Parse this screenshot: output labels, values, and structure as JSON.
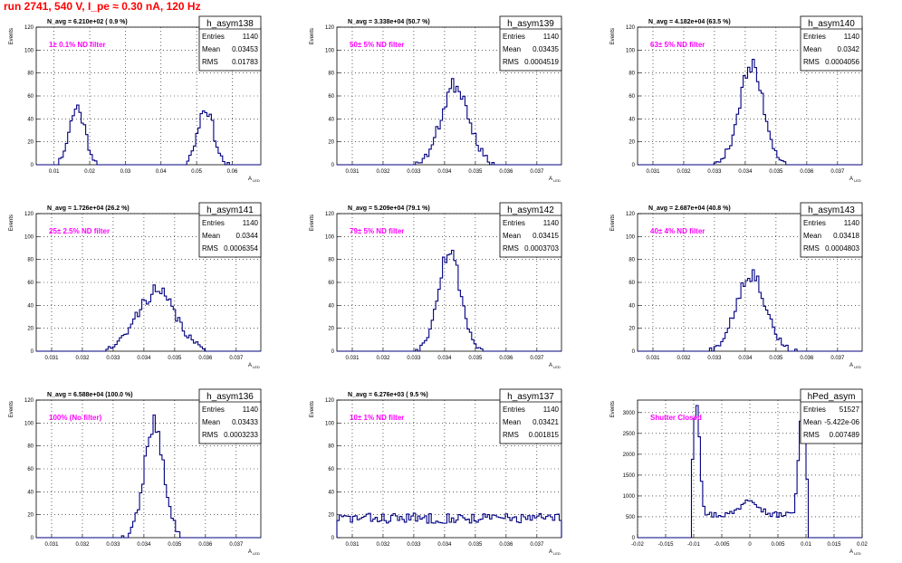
{
  "page_title": "run 2741,   540 V, I_pe ≈ 0.30 nA, 120 Hz",
  "stats_labels": {
    "entries": "Entries",
    "mean": "Mean",
    "rms": "RMS"
  },
  "y_axis_label": "Events",
  "x_axis_label": "A",
  "x_axis_subscript": "LED",
  "colors": {
    "hist": "#000080",
    "title": "#ff0000",
    "annotation": "#ff00ff"
  },
  "chart_data": [
    {
      "type": "histogram",
      "name": "h_asym138",
      "n_avg": "N_avg = 6.210e+02 ( 0.9 %)",
      "annotation": "1± 0.1% ND filter",
      "entries": "1140",
      "mean": "0.03453",
      "rms": "0.01783",
      "xlim": [
        0.005,
        0.068
      ],
      "ylim": [
        0,
        120
      ],
      "xticks": [
        0.01,
        0.02,
        0.03,
        0.04,
        0.05,
        0.06
      ],
      "xtick_labels": [
        "0.01",
        "0.02",
        "0.03",
        "0.04",
        "0.05",
        "0.06"
      ],
      "yticks": [
        0,
        20,
        40,
        60,
        80,
        100,
        120
      ],
      "ytick_labels": [
        "0",
        "20",
        "40",
        "60",
        "80",
        "100",
        "120"
      ],
      "peaks": [
        {
          "mean": 0.0165,
          "sigma": 0.0022,
          "height": 50
        },
        {
          "mean": 0.0525,
          "sigma": 0.0022,
          "height": 50
        }
      ],
      "seed": 11
    },
    {
      "type": "histogram",
      "name": "h_asym139",
      "n_avg": "N_avg = 3.338e+04 (50.7 %)",
      "annotation": "50± 5% ND filter",
      "entries": "1140",
      "mean": "0.03435",
      "rms": "0.0004519",
      "xlim": [
        0.0305,
        0.0378
      ],
      "ylim": [
        0,
        120
      ],
      "xticks": [
        0.031,
        0.032,
        0.033,
        0.034,
        0.035,
        0.036,
        0.037
      ],
      "xtick_labels": [
        "0.031",
        "0.032",
        "0.033",
        "0.034",
        "0.035",
        "0.036",
        "0.037"
      ],
      "yticks": [
        0,
        20,
        40,
        60,
        80,
        100,
        120
      ],
      "ytick_labels": [
        "0",
        "20",
        "40",
        "60",
        "80",
        "100",
        "120"
      ],
      "peaks": [
        {
          "mean": 0.03435,
          "sigma": 0.00045,
          "height": 70
        }
      ],
      "seed": 23
    },
    {
      "type": "histogram",
      "name": "h_asym140",
      "n_avg": "N_avg = 4.182e+04 (63.5 %)",
      "annotation": "63± 5% ND filter",
      "entries": "1140",
      "mean": "0.0342",
      "rms": "0.0004056",
      "xlim": [
        0.0305,
        0.0378
      ],
      "ylim": [
        0,
        120
      ],
      "xticks": [
        0.031,
        0.032,
        0.033,
        0.034,
        0.035,
        0.036,
        0.037
      ],
      "xtick_labels": [
        "0.031",
        "0.032",
        "0.033",
        "0.034",
        "0.035",
        "0.036",
        "0.037"
      ],
      "yticks": [
        0,
        20,
        40,
        60,
        80,
        100,
        120
      ],
      "ytick_labels": [
        "0",
        "20",
        "40",
        "60",
        "80",
        "100",
        "120"
      ],
      "peaks": [
        {
          "mean": 0.0342,
          "sigma": 0.0004,
          "height": 85
        }
      ],
      "seed": 37
    },
    {
      "type": "histogram",
      "name": "h_asym141",
      "n_avg": "N_avg = 1.726e+04 (26.2 %)",
      "annotation": "25± 2.5% ND filter",
      "entries": "1140",
      "mean": "0.0344",
      "rms": "0.0006354",
      "xlim": [
        0.0305,
        0.0378
      ],
      "ylim": [
        0,
        120
      ],
      "xticks": [
        0.031,
        0.032,
        0.033,
        0.034,
        0.035,
        0.036,
        0.037
      ],
      "xtick_labels": [
        "0.031",
        "0.032",
        "0.033",
        "0.034",
        "0.035",
        "0.036",
        "0.037"
      ],
      "yticks": [
        0,
        20,
        40,
        60,
        80,
        100,
        120
      ],
      "ytick_labels": [
        "0",
        "20",
        "40",
        "60",
        "80",
        "100",
        "120"
      ],
      "peaks": [
        {
          "mean": 0.0344,
          "sigma": 0.00063,
          "height": 52
        }
      ],
      "seed": 41
    },
    {
      "type": "histogram",
      "name": "h_asym142",
      "n_avg": "N_avg = 5.209e+04 (79.1 %)",
      "annotation": "79± 5% ND filter",
      "entries": "1140",
      "mean": "0.03415",
      "rms": "0.0003703",
      "xlim": [
        0.0305,
        0.0378
      ],
      "ylim": [
        0,
        120
      ],
      "xticks": [
        0.031,
        0.032,
        0.033,
        0.034,
        0.035,
        0.036,
        0.037
      ],
      "xtick_labels": [
        "0.031",
        "0.032",
        "0.033",
        "0.034",
        "0.035",
        "0.036",
        "0.037"
      ],
      "yticks": [
        0,
        20,
        40,
        60,
        80,
        100,
        120
      ],
      "ytick_labels": [
        "0",
        "20",
        "40",
        "60",
        "80",
        "100",
        "120"
      ],
      "peaks": [
        {
          "mean": 0.03415,
          "sigma": 0.00037,
          "height": 88
        }
      ],
      "seed": 53
    },
    {
      "type": "histogram",
      "name": "h_asym143",
      "n_avg": "N_avg = 2.687e+04 (40.8 %)",
      "annotation": "40± 4% ND filter",
      "entries": "1140",
      "mean": "0.03418",
      "rms": "0.0004803",
      "xlim": [
        0.0305,
        0.0378
      ],
      "ylim": [
        0,
        120
      ],
      "xticks": [
        0.031,
        0.032,
        0.033,
        0.034,
        0.035,
        0.036,
        0.037
      ],
      "xtick_labels": [
        "0.031",
        "0.032",
        "0.033",
        "0.034",
        "0.035",
        "0.036",
        "0.037"
      ],
      "yticks": [
        0,
        20,
        40,
        60,
        80,
        100,
        120
      ],
      "ytick_labels": [
        "0",
        "20",
        "40",
        "60",
        "80",
        "100",
        "120"
      ],
      "peaks": [
        {
          "mean": 0.03418,
          "sigma": 0.00048,
          "height": 68
        }
      ],
      "seed": 67
    },
    {
      "type": "histogram",
      "name": "h_asym136",
      "n_avg": "N_avg = 6.588e+04 (100.0 %)",
      "annotation": "100% (No filter)",
      "entries": "1140",
      "mean": "0.03433",
      "rms": "0.0003233",
      "xlim": [
        0.0305,
        0.0378
      ],
      "ylim": [
        0,
        120
      ],
      "xticks": [
        0.031,
        0.032,
        0.033,
        0.034,
        0.035,
        0.036,
        0.037
      ],
      "xtick_labels": [
        "0.031",
        "0.032",
        "0.033",
        "0.034",
        "0.035",
        "0.036",
        "0.037"
      ],
      "yticks": [
        0,
        20,
        40,
        60,
        80,
        100,
        120
      ],
      "ytick_labels": [
        "0",
        "20",
        "40",
        "60",
        "80",
        "100",
        "120"
      ],
      "peaks": [
        {
          "mean": 0.03433,
          "sigma": 0.00032,
          "height": 100
        }
      ],
      "seed": 79
    },
    {
      "type": "histogram",
      "name": "h_asym137",
      "n_avg": "N_avg = 6.276e+03 ( 9.5 %)",
      "annotation": "10± 1% ND filter",
      "entries": "1140",
      "mean": "0.03421",
      "rms": "0.001815",
      "xlim": [
        0.0305,
        0.0378
      ],
      "ylim": [
        0,
        120
      ],
      "xticks": [
        0.031,
        0.032,
        0.033,
        0.034,
        0.035,
        0.036,
        0.037
      ],
      "xtick_labels": [
        "0.031",
        "0.032",
        "0.033",
        "0.034",
        "0.035",
        "0.036",
        "0.037"
      ],
      "yticks": [
        0,
        20,
        40,
        60,
        80,
        100,
        120
      ],
      "ytick_labels": [
        "0",
        "20",
        "40",
        "60",
        "80",
        "100",
        "120"
      ],
      "flat": 17,
      "seed": 83
    },
    {
      "type": "histogram",
      "name": "hPed_asym",
      "n_avg": "",
      "annotation": "Shutter Closed",
      "entries": "51527",
      "mean": "-5.422e-06",
      "rms": "0.007489",
      "xlim": [
        -0.02,
        0.02
      ],
      "ylim": [
        0,
        3300
      ],
      "xticks": [
        -0.02,
        -0.015,
        -0.01,
        -0.005,
        0,
        0.005,
        0.01,
        0.015,
        0.02
      ],
      "xtick_labels": [
        "-0.02",
        "-0.015",
        "-0.01",
        "-0.005",
        "0",
        "0.005",
        "0.01",
        "0.015",
        "0.02"
      ],
      "yticks": [
        0,
        500,
        1000,
        1500,
        2000,
        2500,
        3000
      ],
      "ytick_labels": [
        "0",
        "500",
        "1000",
        "1500",
        "2000",
        "2500",
        "3000"
      ],
      "ped": true,
      "seed": 97
    }
  ]
}
